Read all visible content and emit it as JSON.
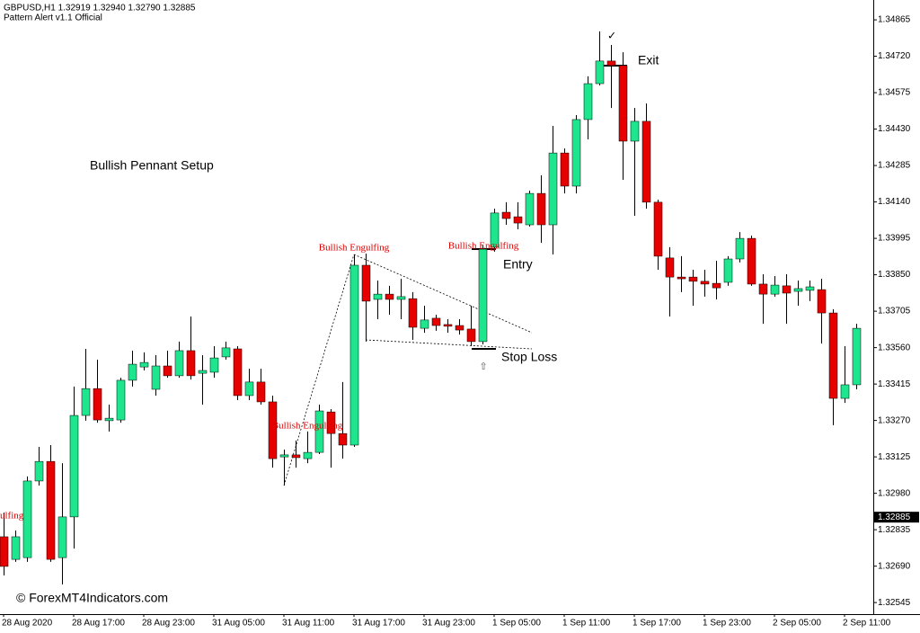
{
  "chart_data": {
    "type": "candlestick",
    "title": "GBPUSD,H1  1.32919 1.32940 1.32790 1.32885",
    "subtitle": "Pattern Alert v1.1 Official",
    "categories": [
      "28 Aug 2020",
      null,
      null,
      null,
      null,
      null,
      "28 Aug 17:00",
      null,
      null,
      null,
      null,
      null,
      "28 Aug 23:00",
      null,
      null,
      null,
      null,
      null,
      "31 Aug 05:00",
      null,
      null,
      null,
      null,
      null,
      "31 Aug 11:00",
      null,
      null,
      null,
      null,
      null,
      "31 Aug 17:00",
      null,
      null,
      null,
      null,
      null,
      "31 Aug 23:00",
      null,
      null,
      null,
      null,
      null,
      "1 Sep 05:00",
      null,
      null,
      null,
      null,
      null,
      "1 Sep 11:00",
      null,
      null,
      null,
      null,
      null,
      "1 Sep 17:00",
      null,
      null,
      null,
      null,
      null,
      "1 Sep 23:00",
      null,
      null,
      null,
      null,
      null,
      "2 Sep 05:00",
      null,
      null,
      null,
      null,
      null,
      "2 Sep 11:00",
      null
    ],
    "open": [
      1.32807,
      1.32717,
      1.32724,
      1.33029,
      1.33107,
      1.32724,
      1.32886,
      1.3329,
      1.33397,
      1.33269,
      1.33272,
      1.3343,
      1.33483,
      1.33394,
      1.33487,
      1.33448,
      1.33548,
      1.33458,
      1.33462,
      1.33523,
      1.33555,
      1.33369,
      1.33423,
      1.33344,
      1.33125,
      1.33133,
      1.33118,
      1.33143,
      1.33304,
      1.33218,
      1.33172,
      1.33888,
      1.33752,
      1.33773,
      1.33752,
      1.33755,
      1.33637,
      1.33677,
      1.33652,
      1.33648,
      1.33634,
      1.33584,
      1.3396,
      1.34099,
      1.34081,
      1.34049,
      1.34174,
      1.34049,
      1.34335,
      1.34203,
      1.34468,
      1.34611,
      1.34701,
      1.34683,
      1.34382,
      1.34461,
      1.34139,
      1.33917,
      1.33841,
      1.33841,
      1.33824,
      1.33816,
      1.3382,
      1.33913,
      1.33995,
      1.33813,
      1.33773,
      1.33806,
      1.33784,
      1.33788,
      1.33791,
      1.33698,
      1.33358,
      1.33412
    ],
    "high": [
      1.32903,
      1.32832,
      1.33047,
      1.33165,
      1.33172,
      1.331,
      1.33405,
      1.33555,
      1.33512,
      1.33333,
      1.3344,
      1.33548,
      1.33541,
      1.3353,
      1.33548,
      1.33584,
      1.33684,
      1.3353,
      1.33566,
      1.33584,
      1.33566,
      1.33476,
      1.33476,
      1.33369,
      1.33154,
      1.3319,
      1.33226,
      1.33333,
      1.33315,
      1.33423,
      1.33931,
      1.33934,
      1.33827,
      1.33806,
      1.33834,
      1.33781,
      1.33727,
      1.33691,
      1.33673,
      1.33673,
      1.33727,
      1.3397,
      1.34113,
      1.34139,
      1.34139,
      1.34185,
      1.34246,
      1.34443,
      1.34353,
      1.34486,
      1.3464,
      1.34819,
      1.34765,
      1.34736,
      1.34514,
      1.34532,
      1.34149,
      1.3396,
      1.33924,
      1.3387,
      1.3387,
      1.33906,
      1.33924,
      1.3402,
      1.34006,
      1.33852,
      1.33845,
      1.33852,
      1.33827,
      1.33827,
      1.33834,
      1.33713,
      1.33566,
      1.33655
    ],
    "low": [
      1.32653,
      1.32707,
      1.32707,
      1.33011,
      1.32707,
      1.32617,
      1.3276,
      1.33269,
      1.33261,
      1.33226,
      1.33261,
      1.33405,
      1.33469,
      1.33369,
      1.3344,
      1.3344,
      1.33433,
      1.33333,
      1.3344,
      1.33512,
      1.33351,
      1.33351,
      1.33333,
      1.33082,
      1.33011,
      1.33082,
      1.331,
      1.33136,
      1.33082,
      1.33118,
      1.33165,
      1.33584,
      1.33673,
      1.33691,
      1.33673,
      1.33591,
      1.33619,
      1.33627,
      1.33619,
      1.33612,
      1.33566,
      1.33573,
      1.33942,
      1.34049,
      1.34031,
      1.34042,
      1.33977,
      1.33931,
      1.34174,
      1.34174,
      1.34389,
      1.34604,
      1.34514,
      1.34228,
      1.34085,
      1.34113,
      1.3387,
      1.33684,
      1.33781,
      1.33727,
      1.33763,
      1.33752,
      1.33806,
      1.33899,
      1.33806,
      1.33655,
      1.33763,
      1.33655,
      1.33727,
      1.33745,
      1.33576,
      1.33251,
      1.3334,
      1.33394
    ],
    "close": [
      1.32689,
      1.32807,
      1.33029,
      1.33107,
      1.32717,
      1.32886,
      1.3329,
      1.33397,
      1.33272,
      1.33279,
      1.3343,
      1.33494,
      1.33501,
      1.33487,
      1.33448,
      1.33548,
      1.33448,
      1.33469,
      1.33519,
      1.33559,
      1.33369,
      1.33423,
      1.33344,
      1.33118,
      1.33133,
      1.33122,
      1.33143,
      1.33308,
      1.33218,
      1.33172,
      1.33888,
      1.33745,
      1.33773,
      1.33752,
      1.33763,
      1.33641,
      1.3367,
      1.33648,
      1.33645,
      1.3363,
      1.33584,
      1.33952,
      1.34096,
      1.34074,
      1.34056,
      1.34174,
      1.34049,
      1.34335,
      1.34203,
      1.34468,
      1.34611,
      1.34701,
      1.34683,
      1.34382,
      1.34461,
      1.34139,
      1.33924,
      1.33841,
      1.33834,
      1.33824,
      1.33813,
      1.33798,
      1.33913,
      1.33995,
      1.33813,
      1.33773,
      1.33809,
      1.33777,
      1.33795,
      1.33802,
      1.33698,
      1.33358,
      1.33412,
      1.33637
    ],
    "up_color": "#1de68e",
    "down_color": "#e60000",
    "ylim": [
      1.32499,
      1.34944
    ],
    "yticks": [
      1.34865,
      {
        "value": 1.3472,
        "label": "1.34720"
      },
      1.34575,
      {
        "value": 1.3443,
        "label": "1.34430"
      },
      1.34285,
      {
        "value": 1.3414,
        "label": "1.34140"
      },
      1.33995,
      {
        "value": 1.3385,
        "label": "1.33850"
      },
      1.33705,
      {
        "value": 1.3356,
        "label": "1.33560"
      },
      1.33415,
      {
        "value": 1.3327,
        "label": "1.33270"
      },
      1.33125,
      {
        "value": 1.3298,
        "label": "1.32980"
      },
      1.32835,
      {
        "value": 1.3269,
        "label": "1.32690"
      },
      1.32545
    ],
    "last_price": 1.32885,
    "annotations": [
      "Bullish Pennant Setup",
      "Bullish Engulfing",
      "Bullish Engulfing",
      "Bullish Engulfing",
      "Bullish Engulfing",
      "Entry",
      "Stop Loss",
      "Exit",
      "✓",
      "⇧",
      "© ForexMT4Indicators.com"
    ]
  }
}
